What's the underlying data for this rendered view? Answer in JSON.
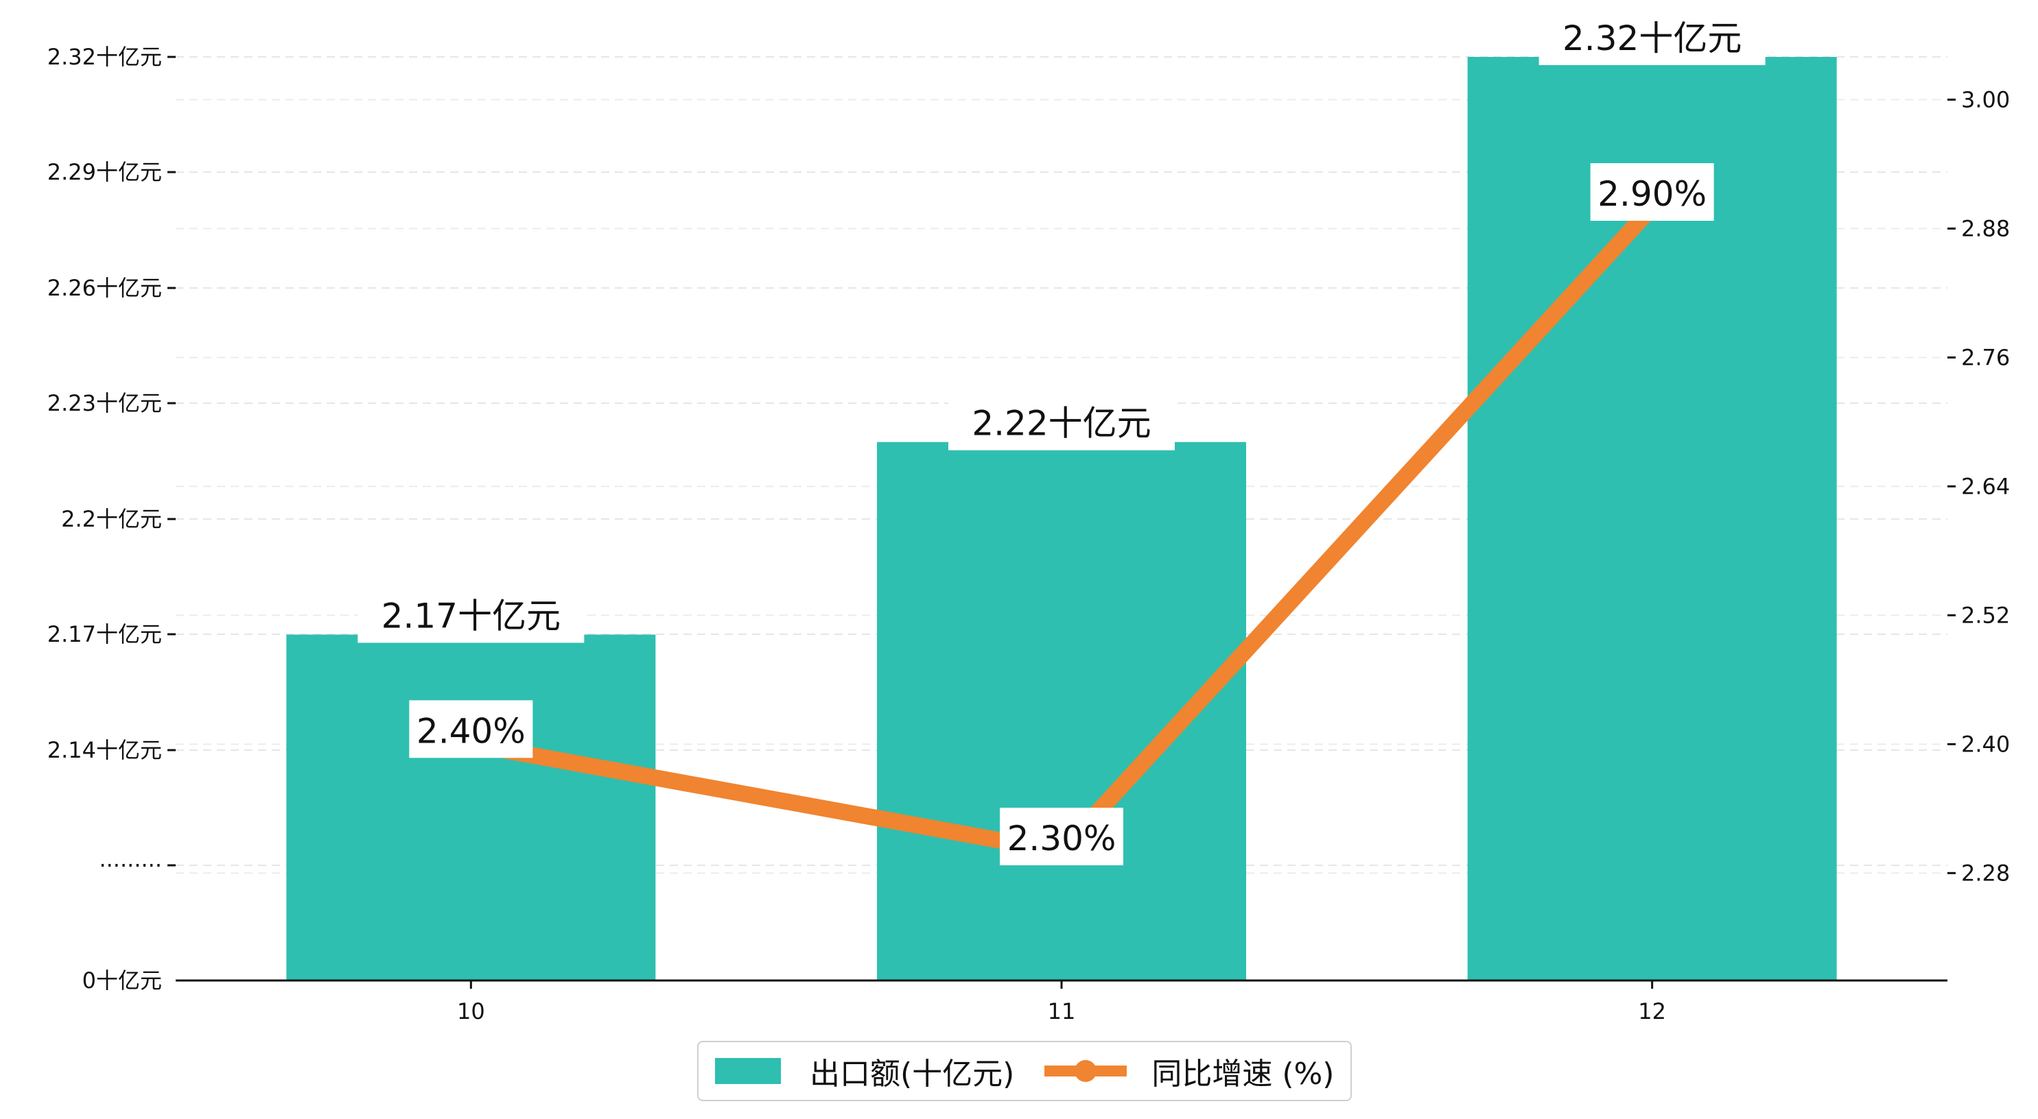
{
  "chart_data": {
    "type": "bar",
    "categories": [
      "10",
      "11",
      "12"
    ],
    "series": [
      {
        "name": "出口额(十亿元)",
        "type": "bar",
        "axis": "left",
        "values": [
          2.17,
          2.22,
          2.32
        ],
        "labels": [
          "2.17十亿元",
          "2.22十亿元",
          "2.32十亿元"
        ]
      },
      {
        "name": "同比增速 (%)",
        "type": "line",
        "axis": "right",
        "values": [
          2.4,
          2.3,
          2.9
        ],
        "labels": [
          "2.40%",
          "2.30%",
          "2.90%"
        ]
      }
    ],
    "y_left": {
      "axis_break": true,
      "ticks": [
        "0十亿元",
        "·········",
        "2.14十亿元",
        "2.17十亿元",
        "2.2十亿元",
        "2.23十亿元",
        "2.26十亿元",
        "2.29十亿元",
        "2.32十亿元"
      ]
    },
    "y_right": {
      "ylim": [
        2.18,
        3.02
      ],
      "ticks": [
        "2.28",
        "2.40",
        "2.52",
        "2.64",
        "2.76",
        "2.88",
        "3.00"
      ]
    },
    "grid": "horizontal dashed",
    "legend_position": "bottom-center",
    "colors": {
      "bar": "#2ebfb0",
      "line": "#f08430"
    }
  }
}
